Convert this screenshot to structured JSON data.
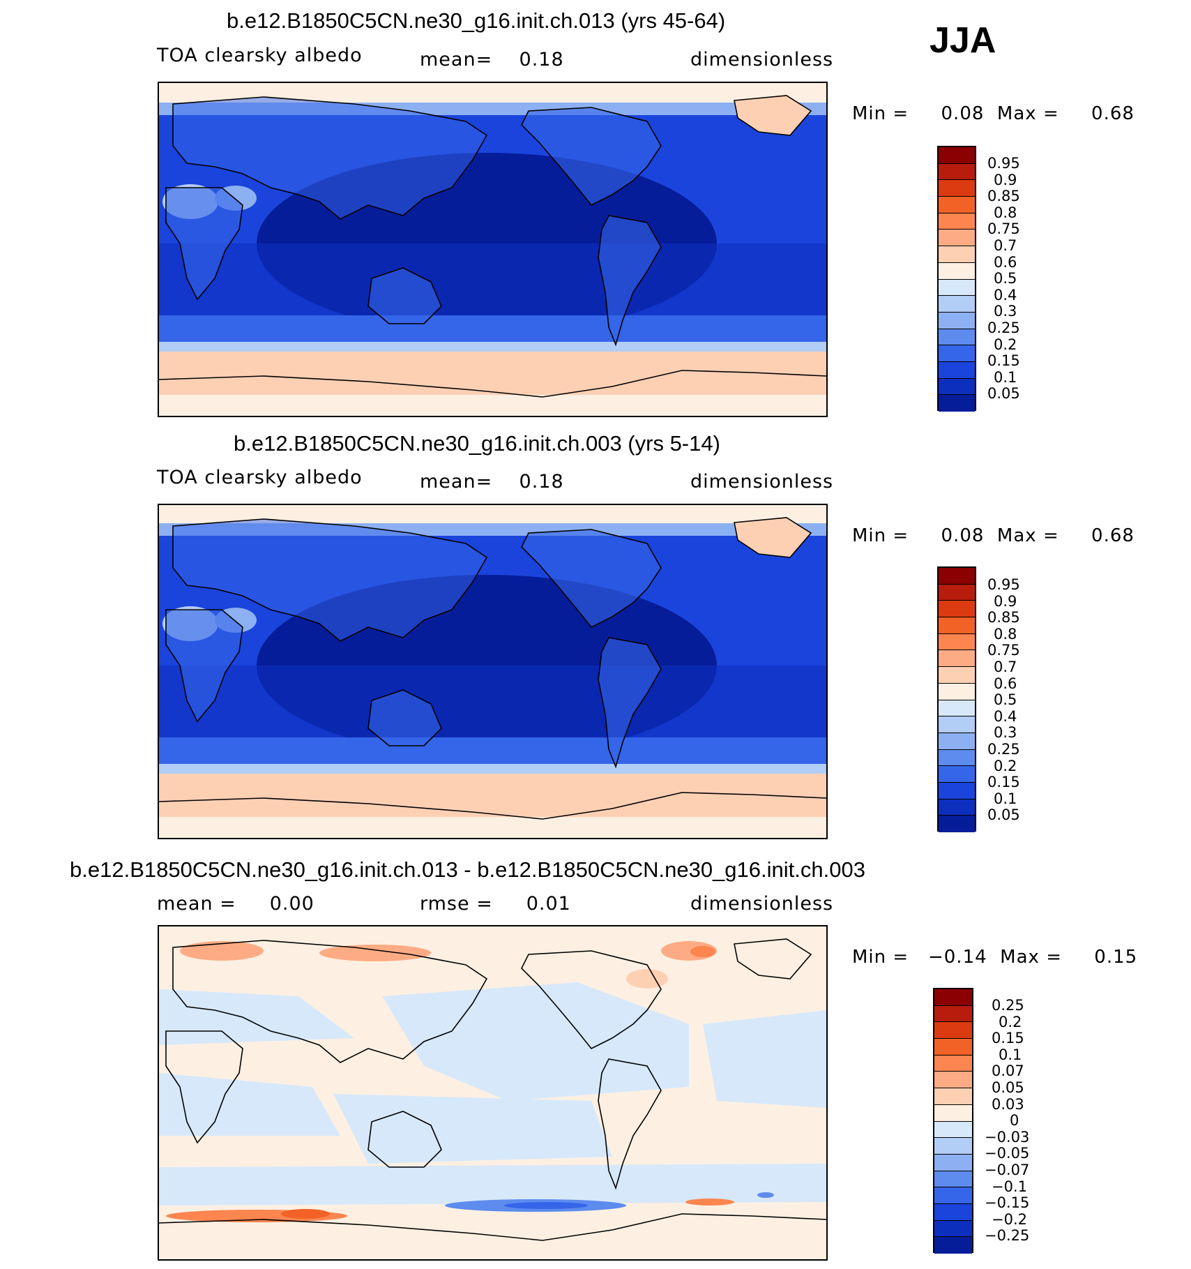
{
  "season": "JJA",
  "panels": [
    {
      "title": "b.e12.B1850C5CN.ne30_g16.init.ch.013 (yrs 45-64)",
      "left": "TOA clearsky albedo",
      "center": "mean=    0.18",
      "right": "dimensionless",
      "minmax": "Min =     0.08  Max =     0.68",
      "levels": [
        "0.95",
        "0.9",
        "0.85",
        "0.8",
        "0.75",
        "0.7",
        "0.6",
        "0.5",
        "0.4",
        "0.3",
        "0.25",
        "0.2",
        "0.15",
        "0.1",
        "0.05"
      ],
      "colors": [
        "#8b0000",
        "#b71c0c",
        "#dc3a10",
        "#f26226",
        "#fc8550",
        "#fdab84",
        "#fdd0b4",
        "#fdf0e2",
        "#d7e8fb",
        "#b2cdf6",
        "#8cb0f2",
        "#5d8bee",
        "#3565e8",
        "#1a44dc",
        "#0d2fbe",
        "#061d9a"
      ]
    },
    {
      "title": "b.e12.B1850C5CN.ne30_g16.init.ch.003 (yrs 5-14)",
      "left": "TOA clearsky albedo",
      "center": "mean=    0.18",
      "right": "dimensionless",
      "minmax": "Min =     0.08  Max =     0.68",
      "levels": [
        "0.95",
        "0.9",
        "0.85",
        "0.8",
        "0.75",
        "0.7",
        "0.6",
        "0.5",
        "0.4",
        "0.3",
        "0.25",
        "0.2",
        "0.15",
        "0.1",
        "0.05"
      ],
      "colors": [
        "#8b0000",
        "#b71c0c",
        "#dc3a10",
        "#f26226",
        "#fc8550",
        "#fdab84",
        "#fdd0b4",
        "#fdf0e2",
        "#d7e8fb",
        "#b2cdf6",
        "#8cb0f2",
        "#5d8bee",
        "#3565e8",
        "#1a44dc",
        "#0d2fbe",
        "#061d9a"
      ]
    },
    {
      "title": "b.e12.B1850C5CN.ne30_g16.init.ch.013 - b.e12.B1850C5CN.ne30_g16.init.ch.003",
      "left": "mean =     0.00",
      "center": "rmse =     0.01",
      "right": "dimensionless",
      "minmax": "Min =   −0.14  Max =     0.15",
      "levels": [
        "0.25",
        "0.2",
        "0.15",
        "0.1",
        "0.07",
        "0.05",
        "0.03",
        "0",
        "−0.03",
        "−0.05",
        "−0.07",
        "−0.1",
        "−0.15",
        "−0.2",
        "−0.25"
      ],
      "colors": [
        "#8b0000",
        "#b71c0c",
        "#dc3a10",
        "#f26226",
        "#fc8550",
        "#fdab84",
        "#fdd0b4",
        "#fdf0e2",
        "#d7e8fb",
        "#b2cdf6",
        "#8cb0f2",
        "#5d8bee",
        "#3565e8",
        "#1a44dc",
        "#0d2fbe",
        "#061d9a"
      ]
    }
  ]
}
